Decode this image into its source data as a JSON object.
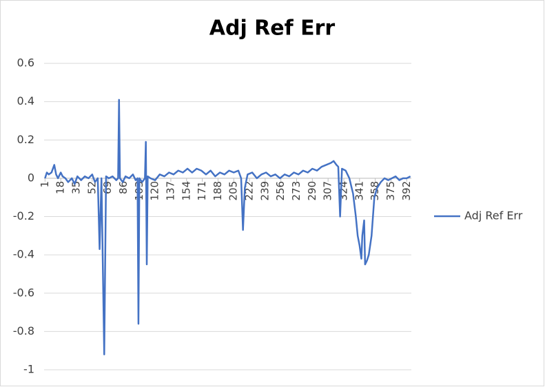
{
  "chart_data": {
    "type": "line",
    "title": "Adj Ref Err",
    "x": [
      1,
      3,
      5,
      8,
      11,
      13,
      15,
      18,
      20,
      23,
      26,
      30,
      33,
      36,
      40,
      44,
      48,
      52,
      55,
      58,
      60,
      62,
      65,
      67,
      70,
      74,
      78,
      80,
      81,
      82,
      85,
      88,
      92,
      96,
      99,
      101,
      102,
      103,
      106,
      109,
      110,
      111,
      112,
      115,
      120,
      125,
      130,
      135,
      140,
      145,
      150,
      155,
      160,
      165,
      170,
      175,
      180,
      185,
      190,
      195,
      200,
      205,
      210,
      213,
      215,
      217,
      220,
      225,
      230,
      235,
      240,
      245,
      250,
      255,
      260,
      265,
      270,
      275,
      280,
      285,
      290,
      295,
      300,
      305,
      310,
      313,
      316,
      318,
      320,
      322,
      326,
      330,
      334,
      337,
      339,
      341,
      343,
      344,
      346,
      347,
      349,
      351,
      354,
      357,
      360,
      364,
      368,
      372,
      376,
      380,
      384,
      388,
      392,
      396
    ],
    "series": [
      {
        "name": "Adj Ref Err",
        "color": "#4472c4",
        "values": [
          0.0,
          0.03,
          0.02,
          0.03,
          0.07,
          0.02,
          0.0,
          0.03,
          0.01,
          0.0,
          -0.02,
          0.0,
          -0.03,
          0.01,
          -0.01,
          0.01,
          0.0,
          0.02,
          -0.02,
          0.0,
          -0.37,
          0.0,
          -0.92,
          0.01,
          0.0,
          0.01,
          -0.01,
          0.0,
          0.41,
          0.0,
          -0.02,
          0.01,
          0.0,
          0.02,
          -0.01,
          0.0,
          -0.76,
          0.0,
          -0.02,
          0.0,
          0.19,
          -0.45,
          0.01,
          0.0,
          -0.01,
          0.02,
          0.01,
          0.03,
          0.02,
          0.04,
          0.03,
          0.05,
          0.03,
          0.05,
          0.04,
          0.02,
          0.04,
          0.01,
          0.03,
          0.02,
          0.04,
          0.03,
          0.04,
          0.0,
          -0.27,
          -0.05,
          0.02,
          0.03,
          0.0,
          0.02,
          0.03,
          0.01,
          0.02,
          0.0,
          0.02,
          0.01,
          0.03,
          0.02,
          0.04,
          0.03,
          0.05,
          0.04,
          0.06,
          0.07,
          0.08,
          0.09,
          0.07,
          0.06,
          -0.2,
          0.05,
          0.04,
          0.0,
          -0.08,
          -0.2,
          -0.3,
          -0.35,
          -0.42,
          -0.3,
          -0.22,
          -0.45,
          -0.43,
          -0.4,
          -0.3,
          -0.1,
          -0.05,
          -0.02,
          0.0,
          -0.01,
          0.0,
          0.01,
          -0.01,
          0.0,
          0.0,
          0.01
        ]
      }
    ],
    "xlim": [
      0,
      397
    ],
    "xticks": [
      1,
      18,
      35,
      52,
      69,
      86,
      103,
      120,
      137,
      154,
      171,
      188,
      205,
      222,
      239,
      256,
      273,
      290,
      307,
      324,
      341,
      358,
      375,
      392
    ],
    "ylim": [
      -1,
      0.6
    ],
    "yticks": [
      -1,
      -0.8,
      -0.6,
      -0.4,
      -0.2,
      0,
      0.2,
      0.4,
      0.6
    ],
    "grid": true,
    "legend": "right"
  }
}
